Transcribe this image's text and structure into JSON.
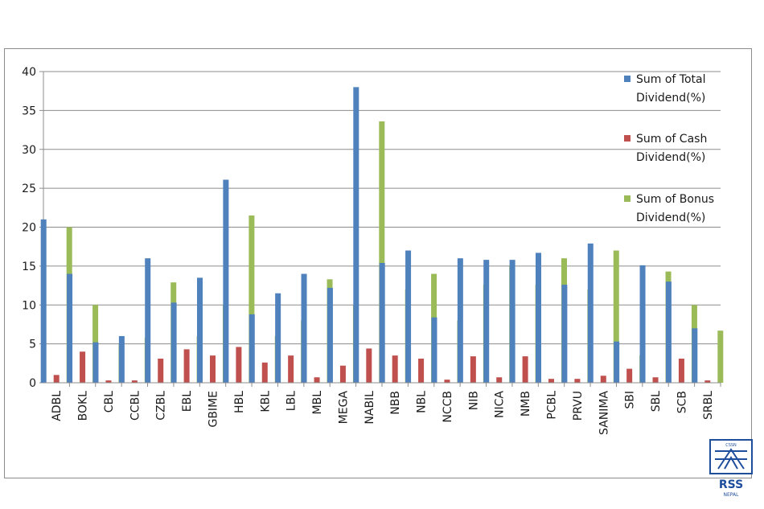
{
  "chart_data": {
    "type": "bar",
    "categories": [
      "ADBL",
      "BOKL",
      "CBL",
      "CCBL",
      "CZBL",
      "EBL",
      "GBIME",
      "HBL",
      "KBL",
      "LBL",
      "MBL",
      "MEGA",
      "NABIL",
      "NBB",
      "NBL",
      "NCCB",
      "NIB",
      "NICA",
      "NMB",
      "PCBL",
      "PRVU",
      "SANIMA",
      "SBI",
      "SBL",
      "SCB",
      "SRBL"
    ],
    "series": [
      {
        "name_lines": [
          "Sum of Total",
          "Dividend(%)"
        ],
        "color": "#4f81bd",
        "values": [
          21,
          14,
          5.2,
          6,
          16,
          10.3,
          13.5,
          26.1,
          8.8,
          11.5,
          14,
          12.2,
          38,
          15.4,
          17,
          8.4,
          16,
          15.8,
          15.8,
          16.7,
          12.6,
          17.9,
          5.3,
          15.1,
          13,
          7
        ]
      },
      {
        "name_lines": [
          "Sum of Cash",
          "Dividend(%)"
        ],
        "color": "#c0504d",
        "values": [
          1,
          4,
          0.3,
          0.3,
          3.1,
          4.3,
          3.5,
          4.6,
          2.6,
          3.5,
          0.7,
          2.2,
          4.4,
          3.5,
          3.1,
          0.4,
          3.4,
          0.7,
          3.4,
          0.5,
          0.5,
          0.9,
          1.8,
          0.7,
          3.1,
          0.3
        ]
      },
      {
        "name_lines": [
          "Sum of Bonus",
          "Dividend(%)"
        ],
        "color": "#9bbb59",
        "values": [
          20,
          10,
          5,
          5.8,
          12.9,
          6,
          10,
          21.5,
          6,
          8,
          13.3,
          10,
          33.6,
          12,
          14,
          8,
          12.6,
          15.1,
          12.6,
          16,
          12,
          17,
          3.5,
          14.3,
          10,
          6.7
        ]
      }
    ],
    "title": "",
    "xlabel": "",
    "ylabel": "",
    "ylim": [
      0,
      40
    ],
    "yticks": [
      0,
      5,
      10,
      15,
      20,
      25,
      30,
      35,
      40
    ],
    "grid": true,
    "legend_position": "right"
  },
  "logo": {
    "top_text": "CSSN",
    "main_text": "RSS",
    "sub_text": "NEPAL",
    "color": "#1f4e9c"
  }
}
